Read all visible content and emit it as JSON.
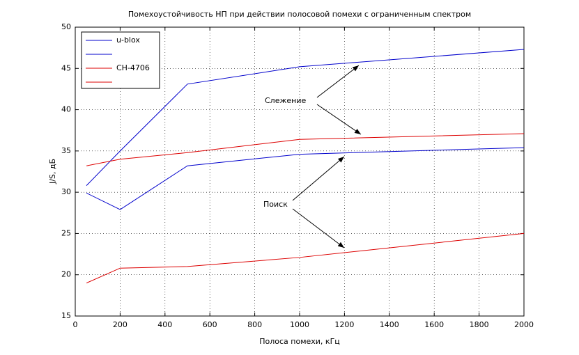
{
  "chart_data": {
    "type": "line",
    "title": "Помехоустойчивость НП при действии полосовой помехи с ограниченным спектром",
    "xlabel": "Полоса помехи, кГц",
    "ylabel": "J/S, дБ",
    "x": [
      50,
      200,
      500,
      1000,
      2000
    ],
    "series": [
      {
        "name": "u-blox",
        "color": "#0000cc",
        "values": [
          30.8,
          35,
          43.1,
          45.2,
          47.3
        ]
      },
      {
        "color": "#0000cc",
        "values": [
          29.9,
          27.9,
          33.2,
          34.6,
          35.4
        ]
      },
      {
        "name": "CH-4706",
        "color": "#dd0000",
        "values": [
          33.2,
          34.0,
          34.8,
          36.4,
          37.1
        ]
      },
      {
        "color": "#dd0000",
        "values": [
          19.0,
          20.8,
          21.0,
          22.1,
          25.0
        ]
      }
    ],
    "annotations": [
      "Слежение",
      "Поиск"
    ],
    "xlim": [
      0,
      2000
    ],
    "xticks": [
      0,
      200,
      400,
      600,
      800,
      1000,
      1200,
      1400,
      1600,
      1800,
      2000
    ],
    "ylim": [
      15,
      50
    ],
    "yticks": [
      15,
      20,
      25,
      30,
      35,
      40,
      45,
      50
    ],
    "grid": true,
    "legend": "upper-left"
  }
}
